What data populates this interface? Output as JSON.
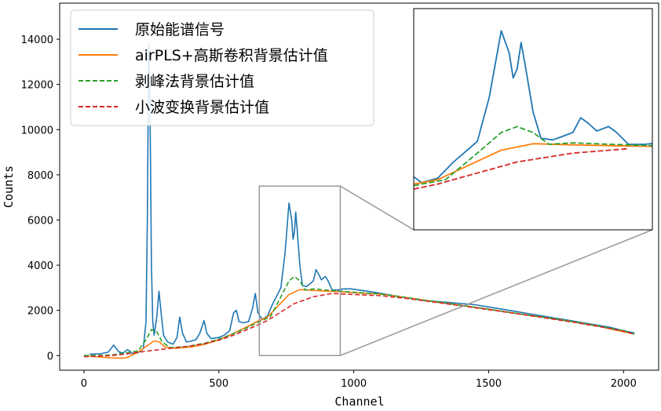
{
  "chart_data": {
    "type": "line",
    "xlabel": "Channel",
    "ylabel": "Counts",
    "xlim": [
      -90,
      2130
    ],
    "ylim": [
      -650,
      15600
    ],
    "xticks": [
      0,
      500,
      1000,
      1500,
      2000
    ],
    "yticks": [
      0,
      2000,
      4000,
      6000,
      8000,
      10000,
      12000,
      14000
    ],
    "grid": false,
    "legend_position": "top-left",
    "series": [
      {
        "name": "原始能谱信号",
        "color": "#1f77b4",
        "style": "solid",
        "points": [
          [
            20,
            60
          ],
          [
            60,
            80
          ],
          [
            90,
            150
          ],
          [
            100,
            300
          ],
          [
            110,
            460
          ],
          [
            120,
            300
          ],
          [
            130,
            160
          ],
          [
            145,
            110
          ],
          [
            160,
            260
          ],
          [
            170,
            200
          ],
          [
            180,
            80
          ],
          [
            200,
            120
          ],
          [
            220,
            300
          ],
          [
            230,
            1500
          ],
          [
            235,
            6000
          ],
          [
            240,
            13800
          ],
          [
            245,
            11000
          ],
          [
            250,
            4000
          ],
          [
            255,
            1500
          ],
          [
            260,
            900
          ],
          [
            270,
            1700
          ],
          [
            278,
            2850
          ],
          [
            285,
            2000
          ],
          [
            295,
            900
          ],
          [
            310,
            600
          ],
          [
            330,
            500
          ],
          [
            345,
            800
          ],
          [
            355,
            1700
          ],
          [
            365,
            1000
          ],
          [
            380,
            600
          ],
          [
            400,
            650
          ],
          [
            415,
            700
          ],
          [
            430,
            1000
          ],
          [
            445,
            1550
          ],
          [
            455,
            1000
          ],
          [
            470,
            750
          ],
          [
            500,
            800
          ],
          [
            520,
            900
          ],
          [
            540,
            1100
          ],
          [
            555,
            1900
          ],
          [
            565,
            2000
          ],
          [
            575,
            1500
          ],
          [
            590,
            1450
          ],
          [
            610,
            1500
          ],
          [
            625,
            2100
          ],
          [
            635,
            2750
          ],
          [
            645,
            1900
          ],
          [
            660,
            1600
          ],
          [
            680,
            1750
          ],
          [
            700,
            2300
          ],
          [
            715,
            2650
          ],
          [
            730,
            3000
          ],
          [
            745,
            4500
          ],
          [
            760,
            6750
          ],
          [
            770,
            6000
          ],
          [
            775,
            5150
          ],
          [
            780,
            5450
          ],
          [
            785,
            6350
          ],
          [
            790,
            5600
          ],
          [
            800,
            4000
          ],
          [
            810,
            3100
          ],
          [
            825,
            3050
          ],
          [
            835,
            3150
          ],
          [
            850,
            3300
          ],
          [
            860,
            3800
          ],
          [
            870,
            3600
          ],
          [
            880,
            3350
          ],
          [
            895,
            3500
          ],
          [
            905,
            3300
          ],
          [
            920,
            2900
          ],
          [
            940,
            2900
          ],
          [
            960,
            2950
          ],
          [
            990,
            2950
          ],
          [
            1020,
            2900
          ],
          [
            1050,
            2850
          ],
          [
            1100,
            2750
          ],
          [
            1150,
            2650
          ],
          [
            1200,
            2550
          ],
          [
            1250,
            2450
          ],
          [
            1300,
            2400
          ],
          [
            1350,
            2350
          ],
          [
            1400,
            2300
          ],
          [
            1450,
            2250
          ],
          [
            1500,
            2150
          ],
          [
            1550,
            2050
          ],
          [
            1600,
            1950
          ],
          [
            1650,
            1850
          ],
          [
            1700,
            1750
          ],
          [
            1750,
            1650
          ],
          [
            1800,
            1550
          ],
          [
            1850,
            1450
          ],
          [
            1900,
            1350
          ],
          [
            1950,
            1250
          ],
          [
            2000,
            1100
          ],
          [
            2040,
            1000
          ]
        ]
      },
      {
        "name": "airPLS+高斯卷积背景估计值",
        "color": "#ff7f0e",
        "style": "solid",
        "points": [
          [
            0,
            0
          ],
          [
            50,
            -60
          ],
          [
            100,
            -100
          ],
          [
            140,
            -120
          ],
          [
            160,
            -90
          ],
          [
            200,
            150
          ],
          [
            230,
            400
          ],
          [
            260,
            650
          ],
          [
            280,
            600
          ],
          [
            300,
            380
          ],
          [
            340,
            320
          ],
          [
            400,
            380
          ],
          [
            450,
            500
          ],
          [
            500,
            700
          ],
          [
            550,
            950
          ],
          [
            600,
            1250
          ],
          [
            650,
            1550
          ],
          [
            680,
            1700
          ],
          [
            720,
            2200
          ],
          [
            760,
            2700
          ],
          [
            800,
            2920
          ],
          [
            850,
            2880
          ],
          [
            900,
            2850
          ],
          [
            950,
            2830
          ],
          [
            1000,
            2780
          ],
          [
            1100,
            2720
          ],
          [
            1200,
            2560
          ],
          [
            1300,
            2380
          ],
          [
            1400,
            2220
          ],
          [
            1500,
            2050
          ],
          [
            1600,
            1870
          ],
          [
            1700,
            1700
          ],
          [
            1800,
            1520
          ],
          [
            1900,
            1320
          ],
          [
            1980,
            1100
          ],
          [
            2040,
            950
          ]
        ]
      },
      {
        "name": "剥峰法背景估计值",
        "color": "#2ca02c",
        "style": "dashed",
        "points": [
          [
            0,
            0
          ],
          [
            100,
            20
          ],
          [
            200,
            200
          ],
          [
            230,
            700
          ],
          [
            250,
            1150
          ],
          [
            270,
            1050
          ],
          [
            290,
            600
          ],
          [
            320,
            350
          ],
          [
            380,
            400
          ],
          [
            450,
            550
          ],
          [
            520,
            800
          ],
          [
            600,
            1200
          ],
          [
            650,
            1500
          ],
          [
            690,
            1700
          ],
          [
            730,
            2600
          ],
          [
            760,
            3300
          ],
          [
            780,
            3500
          ],
          [
            800,
            3300
          ],
          [
            820,
            2900
          ],
          [
            850,
            2950
          ],
          [
            900,
            2900
          ],
          [
            950,
            2850
          ],
          [
            1000,
            2800
          ],
          [
            1100,
            2720
          ],
          [
            1200,
            2560
          ],
          [
            1300,
            2380
          ],
          [
            1400,
            2220
          ],
          [
            1500,
            2050
          ],
          [
            1600,
            1870
          ],
          [
            1700,
            1700
          ],
          [
            1800,
            1520
          ],
          [
            1900,
            1320
          ],
          [
            2000,
            1100
          ],
          [
            2040,
            950
          ]
        ]
      },
      {
        "name": "小波变换背景估计值",
        "color": "#d62728",
        "style": "dashed",
        "points": [
          [
            0,
            -50
          ],
          [
            50,
            -30
          ],
          [
            100,
            0
          ],
          [
            150,
            60
          ],
          [
            200,
            140
          ],
          [
            250,
            220
          ],
          [
            300,
            290
          ],
          [
            350,
            360
          ],
          [
            400,
            430
          ],
          [
            450,
            530
          ],
          [
            500,
            680
          ],
          [
            550,
            880
          ],
          [
            600,
            1120
          ],
          [
            650,
            1380
          ],
          [
            680,
            1550
          ],
          [
            720,
            1850
          ],
          [
            780,
            2300
          ],
          [
            850,
            2600
          ],
          [
            920,
            2750
          ],
          [
            1000,
            2700
          ],
          [
            1100,
            2650
          ],
          [
            1200,
            2520
          ],
          [
            1300,
            2360
          ],
          [
            1400,
            2200
          ],
          [
            1500,
            2030
          ],
          [
            1600,
            1860
          ],
          [
            1700,
            1680
          ],
          [
            1800,
            1500
          ],
          [
            1900,
            1300
          ],
          [
            2000,
            1080
          ],
          [
            2040,
            940
          ]
        ]
      }
    ],
    "inset": {
      "xlim": [
        650,
        950
      ],
      "ylim": [
        0,
        7500
      ]
    }
  }
}
